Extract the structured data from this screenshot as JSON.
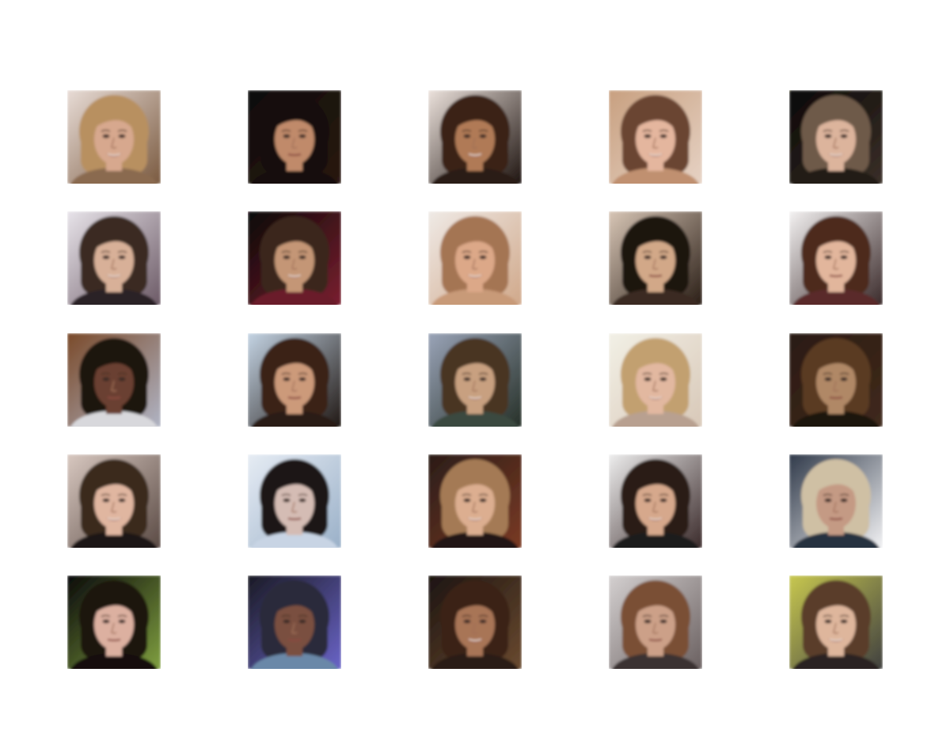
{
  "figure": {
    "background": "#ffffff",
    "rows": 5,
    "cols": 5,
    "tiles": [
      {
        "bg": [
          "#e8dcd6",
          "#7a5a40"
        ],
        "hair": "#b89060",
        "skin": "#d7a88e",
        "shirt": "#8a6a50",
        "smile": true
      },
      {
        "bg": [
          "#0e0b0a",
          "#2a1a12"
        ],
        "hair": "#140e0c",
        "skin": "#c08a6a",
        "shirt": "#181010",
        "smile": false
      },
      {
        "bg": [
          "#ece2dc",
          "#1e1410"
        ],
        "hair": "#3a2216",
        "skin": "#b07a56",
        "shirt": "#2b1d16",
        "smile": true
      },
      {
        "bg": [
          "#c8a080",
          "#e6d2c4"
        ],
        "hair": "#6a4430",
        "skin": "#e4b69e",
        "shirt": "#c09070",
        "smile": true
      },
      {
        "bg": [
          "#0a0806",
          "#3a2f28"
        ],
        "hair": "#6e5a48",
        "skin": "#dcb49c",
        "shirt": "#221a16",
        "smile": true
      },
      {
        "bg": [
          "#e8e4ea",
          "#6c5a66"
        ],
        "hair": "#3a2a22",
        "skin": "#d8b098",
        "shirt": "#2a2026",
        "smile": true
      },
      {
        "bg": [
          "#0a0606",
          "#7a2030"
        ],
        "hair": "#3a261c",
        "skin": "#c49676",
        "shirt": "#6a1c2a",
        "smile": true
      },
      {
        "bg": [
          "#efeae6",
          "#d0a88a"
        ],
        "hair": "#a47452",
        "skin": "#dca888",
        "shirt": "#c89a78",
        "smile": true
      },
      {
        "bg": [
          "#d8c6b6",
          "#2a1e16"
        ],
        "hair": "#1a120e",
        "skin": "#d2a888",
        "shirt": "#3a2c24",
        "smile": false
      },
      {
        "bg": [
          "#f4f2f2",
          "#3a2a2a"
        ],
        "hair": "#4e2c1e",
        "skin": "#e2b69c",
        "shirt": "#5a2a2a",
        "smile": false
      },
      {
        "bg": [
          "#7a4a2a",
          "#b0b4c4"
        ],
        "hair": "#1e1410",
        "skin": "#6a4030",
        "shirt": "#d8d8dc",
        "smile": false
      },
      {
        "bg": [
          "#c4d4e4",
          "#201814"
        ],
        "hair": "#3a2418",
        "skin": "#cc9a7a",
        "shirt": "#2a1c16",
        "smile": false
      },
      {
        "bg": [
          "#9aa4b8",
          "#263028"
        ],
        "hair": "#4a3424",
        "skin": "#c8a080",
        "shirt": "#3a4a40",
        "smile": true
      },
      {
        "bg": [
          "#f2f0e6",
          "#d8c8b8"
        ],
        "hair": "#c2a070",
        "skin": "#e2b8a0",
        "shirt": "#b8a090",
        "smile": true
      },
      {
        "bg": [
          "#2a1a12",
          "#402a1c"
        ],
        "hair": "#5a3a22",
        "skin": "#b08866",
        "shirt": "#1a120c",
        "smile": false
      },
      {
        "bg": [
          "#d8c8c0",
          "#5a4a44"
        ],
        "hair": "#3a2a1e",
        "skin": "#e0b6a0",
        "shirt": "#1c1616",
        "smile": true
      },
      {
        "bg": [
          "#e6ecf4",
          "#9ab0c8"
        ],
        "hair": "#1a1418",
        "skin": "#d4bcb4",
        "shirt": "#c8d4e4",
        "smile": false
      },
      {
        "bg": [
          "#2a1c18",
          "#7a3a24"
        ],
        "hair": "#a47a54",
        "skin": "#dcae90",
        "shirt": "#201818",
        "smile": true
      },
      {
        "bg": [
          "#eeeeee",
          "#3a2a2a"
        ],
        "hair": "#2a1a14",
        "skin": "#d6a88c",
        "shirt": "#1e1a1c",
        "smile": true
      },
      {
        "bg": [
          "#303a4a",
          "#f2f2f4"
        ],
        "hair": "#cfc0a4",
        "skin": "#c49a84",
        "shirt": "#283040",
        "smile": false
      },
      {
        "bg": [
          "#0a0a0a",
          "#80a040"
        ],
        "hair": "#1e1610",
        "skin": "#dcb0a0",
        "shirt": "#141010",
        "smile": false
      },
      {
        "bg": [
          "#1a1a24",
          "#6a64c8"
        ],
        "hair": "#2a2a3a",
        "skin": "#7a5040",
        "shirt": "#6a88a8",
        "smile": false
      },
      {
        "bg": [
          "#1c1410",
          "#6a4a30"
        ],
        "hair": "#3a2418",
        "skin": "#a87456",
        "shirt": "#2a1a12",
        "smile": true
      },
      {
        "bg": [
          "#d4d0d0",
          "#6a6060"
        ],
        "hair": "#7a5034",
        "skin": "#cca088",
        "shirt": "#3a3030",
        "smile": false
      },
      {
        "bg": [
          "#c8c850",
          "#404040"
        ],
        "hair": "#5a3e2a",
        "skin": "#deb69c",
        "shirt": "#2a2420",
        "smile": true
      }
    ]
  }
}
